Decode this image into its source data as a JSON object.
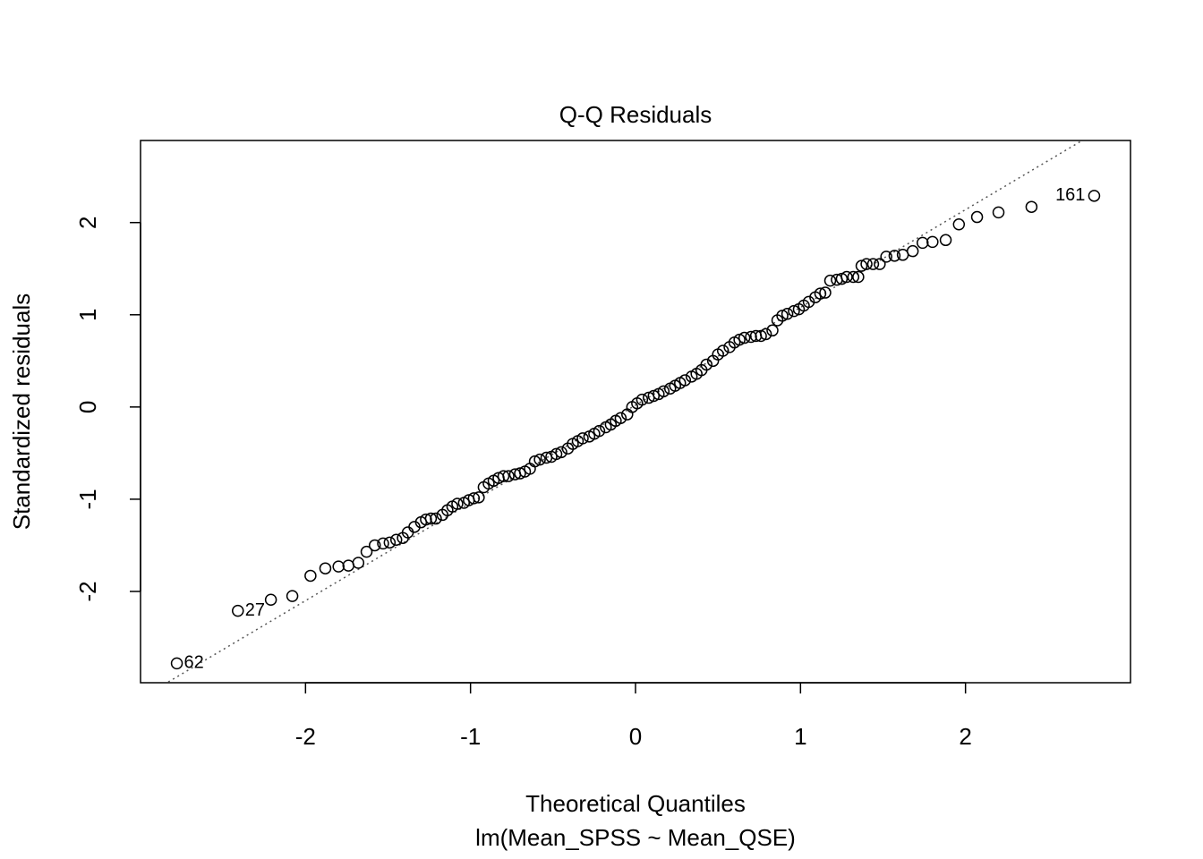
{
  "chart_data": {
    "type": "scatter",
    "title": "Q-Q Residuals",
    "x_label": "Theoretical Quantiles",
    "subtitle": "lm(Mean_SPSS ~ Mean_QSE)",
    "y_label": "Standardized residuals",
    "x": [
      -2.78,
      -2.41,
      -2.21,
      -2.08,
      -1.97,
      -1.88,
      -1.8,
      -1.74,
      -1.68,
      -1.63,
      -1.58,
      -1.53,
      -1.49,
      -1.45,
      -1.41,
      -1.38,
      -1.34,
      -1.3,
      -1.27,
      -1.24,
      -1.21,
      -1.17,
      -1.14,
      -1.11,
      -1.08,
      -1.04,
      -1.01,
      -0.98,
      -0.95,
      -0.92,
      -0.89,
      -0.86,
      -0.83,
      -0.8,
      -0.77,
      -0.73,
      -0.7,
      -0.67,
      -0.64,
      -0.61,
      -0.58,
      -0.54,
      -0.51,
      -0.48,
      -0.45,
      -0.41,
      -0.38,
      -0.35,
      -0.32,
      -0.28,
      -0.25,
      -0.22,
      -0.18,
      -0.15,
      -0.12,
      -0.09,
      -0.05,
      -0.02,
      0.01,
      0.04,
      0.08,
      0.11,
      0.14,
      0.17,
      0.21,
      0.24,
      0.27,
      0.3,
      0.34,
      0.37,
      0.4,
      0.43,
      0.47,
      0.5,
      0.53,
      0.57,
      0.6,
      0.63,
      0.66,
      0.7,
      0.73,
      0.76,
      0.79,
      0.83,
      0.86,
      0.89,
      0.92,
      0.96,
      0.99,
      1.02,
      1.05,
      1.09,
      1.12,
      1.15,
      1.18,
      1.22,
      1.25,
      1.28,
      1.32,
      1.35,
      1.37,
      1.4,
      1.44,
      1.48,
      1.52,
      1.57,
      1.62,
      1.68,
      1.74,
      1.8,
      1.88,
      1.96,
      2.07,
      2.2,
      2.4,
      2.78
    ],
    "series": [
      {
        "color": "#000000",
        "values": [
          -2.78,
          -2.21,
          -2.09,
          -2.05,
          -1.83,
          -1.75,
          -1.73,
          -1.72,
          -1.69,
          -1.57,
          -1.5,
          -1.48,
          -1.47,
          -1.44,
          -1.42,
          -1.36,
          -1.3,
          -1.25,
          -1.22,
          -1.21,
          -1.21,
          -1.17,
          -1.12,
          -1.08,
          -1.05,
          -1.04,
          -1.01,
          -0.99,
          -0.98,
          -0.87,
          -0.83,
          -0.8,
          -0.77,
          -0.75,
          -0.75,
          -0.73,
          -0.72,
          -0.7,
          -0.67,
          -0.59,
          -0.57,
          -0.55,
          -0.54,
          -0.51,
          -0.49,
          -0.45,
          -0.4,
          -0.37,
          -0.34,
          -0.32,
          -0.29,
          -0.26,
          -0.22,
          -0.19,
          -0.15,
          -0.12,
          -0.08,
          0.0,
          0.04,
          0.08,
          0.1,
          0.12,
          0.14,
          0.17,
          0.2,
          0.23,
          0.26,
          0.29,
          0.33,
          0.36,
          0.4,
          0.46,
          0.5,
          0.57,
          0.61,
          0.65,
          0.7,
          0.73,
          0.75,
          0.76,
          0.77,
          0.77,
          0.79,
          0.83,
          0.94,
          0.99,
          1.01,
          1.04,
          1.06,
          1.1,
          1.14,
          1.19,
          1.23,
          1.24,
          1.37,
          1.38,
          1.39,
          1.41,
          1.41,
          1.41,
          1.53,
          1.55,
          1.55,
          1.55,
          1.63,
          1.64,
          1.65,
          1.69,
          1.78,
          1.79,
          1.81,
          1.98,
          2.06,
          2.11,
          2.17,
          2.29
        ]
      }
    ],
    "point_labels": [
      "62",
      "27",
      null,
      null,
      null,
      null,
      null,
      null,
      null,
      null,
      null,
      null,
      null,
      null,
      null,
      null,
      null,
      null,
      null,
      null,
      null,
      null,
      null,
      null,
      null,
      null,
      null,
      null,
      null,
      null,
      null,
      null,
      null,
      null,
      null,
      null,
      null,
      null,
      null,
      null,
      null,
      null,
      null,
      null,
      null,
      null,
      null,
      null,
      null,
      null,
      null,
      null,
      null,
      null,
      null,
      null,
      null,
      null,
      null,
      null,
      null,
      null,
      null,
      null,
      null,
      null,
      null,
      null,
      null,
      null,
      null,
      null,
      null,
      null,
      null,
      null,
      null,
      null,
      null,
      null,
      null,
      null,
      null,
      null,
      null,
      null,
      null,
      null,
      null,
      null,
      null,
      null,
      null,
      null,
      null,
      null,
      null,
      null,
      null,
      null,
      null,
      null,
      null,
      null,
      null,
      null,
      null,
      null,
      null,
      null,
      null,
      null,
      null,
      null,
      null,
      "161"
    ],
    "reference_line": {
      "slope": 1.06,
      "intercept": 0.02
    },
    "xlim": [
      -3.0,
      3.0
    ],
    "ylim": [
      -2.99,
      2.89
    ],
    "xticks": [
      -2,
      -1,
      0,
      1,
      2
    ],
    "yticks": [
      -2,
      -1,
      0,
      1,
      2
    ]
  }
}
